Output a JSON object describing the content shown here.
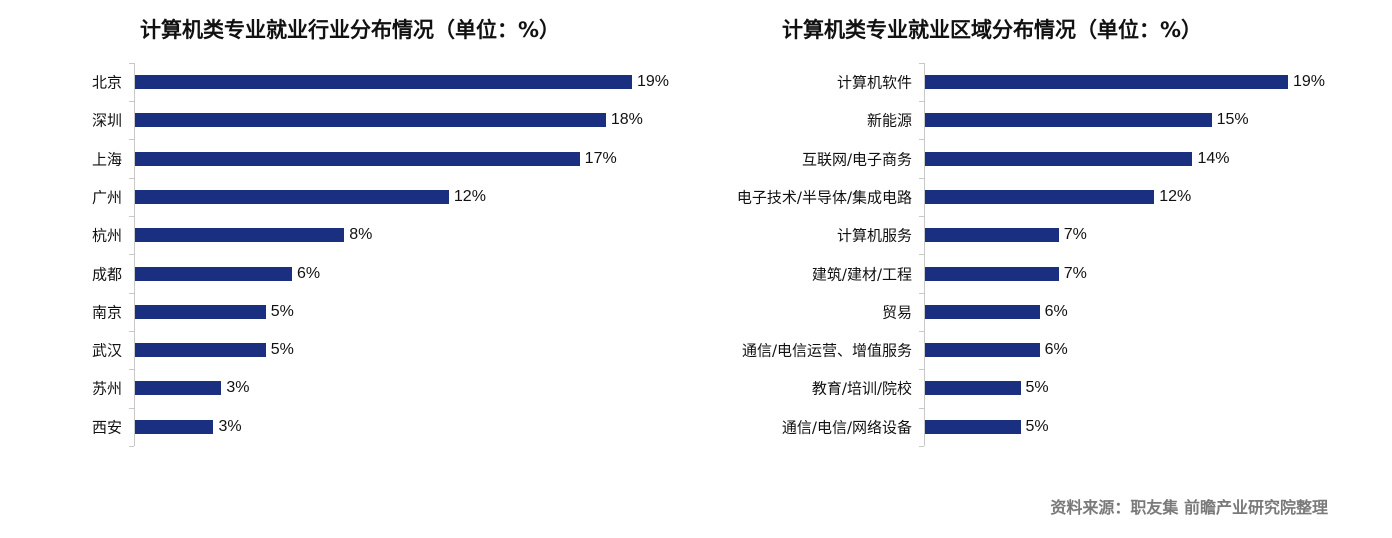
{
  "colors": {
    "bar": "#1b2f80",
    "axis": "#c8c8c8"
  },
  "chart_data": [
    {
      "type": "bar",
      "orientation": "horizontal",
      "title": "计算机类专业就业行业分布情况（单位：%）",
      "categories": [
        "北京",
        "深圳",
        "上海",
        "广州",
        "杭州",
        "成都",
        "南京",
        "武汉",
        "苏州",
        "西安"
      ],
      "values": [
        19,
        18,
        17,
        12,
        8,
        6,
        5,
        5,
        3.3,
        3
      ],
      "data_labels": [
        "19%",
        "18%",
        "17%",
        "12%",
        "8%",
        "6%",
        "5%",
        "5%",
        "3%",
        "3%"
      ],
      "xlim": [
        0,
        19
      ],
      "grid": false,
      "legend": "none"
    },
    {
      "type": "bar",
      "orientation": "horizontal",
      "title": "计算机类专业就业区域分布情况（单位：%）",
      "categories": [
        "计算机软件",
        "新能源",
        "互联网/电子商务",
        "电子技术/半导体/集成电路",
        "计算机服务",
        "建筑/建材/工程",
        "贸易",
        "通信/电信运营、增值服务",
        "教育/培训/院校",
        "通信/电信/网络设备"
      ],
      "values": [
        19,
        15,
        14,
        12,
        7,
        7,
        6,
        6,
        5,
        5
      ],
      "data_labels": [
        "19%",
        "15%",
        "14%",
        "12%",
        "7%",
        "7%",
        "6%",
        "6%",
        "5%",
        "5%"
      ],
      "xlim": [
        0,
        19
      ],
      "grid": false,
      "legend": "none"
    }
  ],
  "source": "资料来源：职友集 前瞻产业研究院整理"
}
